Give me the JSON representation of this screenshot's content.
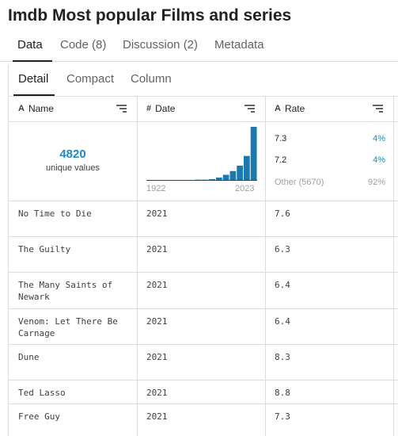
{
  "title": "Imdb Most popular Films and series",
  "tabs": [
    {
      "label": "Data",
      "active": true
    },
    {
      "label": "Code (8)",
      "active": false
    },
    {
      "label": "Discussion (2)",
      "active": false
    },
    {
      "label": "Metadata",
      "active": false
    }
  ],
  "subtabs": [
    {
      "label": "Detail",
      "active": true
    },
    {
      "label": "Compact",
      "active": false
    },
    {
      "label": "Column",
      "active": false
    }
  ],
  "columns": [
    {
      "type_icon": "A",
      "name": "Name"
    },
    {
      "type_icon": "#",
      "name": "Date"
    },
    {
      "type_icon": "A",
      "name": "Rate"
    }
  ],
  "summary": {
    "name": {
      "unique_count": "4820",
      "unique_label": "unique values"
    },
    "date": {
      "min_label": "1922",
      "max_label": "2023",
      "bar_color": "#1a7aaf",
      "histogram": [
        0.01,
        0.01,
        0.01,
        0.01,
        0.01,
        0.01,
        0.01,
        0.02,
        0.02,
        0.03,
        0.06,
        0.11,
        0.18,
        0.28,
        0.46,
        1.0
      ]
    },
    "rate": [
      {
        "label": "7.3",
        "pct": "4%"
      },
      {
        "label": "7.2",
        "pct": "4%"
      },
      {
        "label": "Other (5670)",
        "pct": "92%"
      }
    ]
  },
  "rows": [
    {
      "name": [
        "No Time to Die"
      ],
      "date": "2021",
      "rate": "7.6"
    },
    {
      "name": [
        "The Guilty"
      ],
      "date": "2021",
      "rate": "6.3"
    },
    {
      "name": [
        "The Many Saints of",
        "Newark"
      ],
      "date": "2021",
      "rate": "6.4"
    },
    {
      "name": [
        "Venom: Let There Be",
        "Carnage"
      ],
      "date": "2021",
      "rate": "6.4"
    },
    {
      "name": [
        "Dune"
      ],
      "date": "2021",
      "rate": "8.3"
    },
    {
      "name": [
        "Ted Lasso"
      ],
      "date": "2021",
      "rate": "8.8"
    },
    {
      "name": [
        "Free Guy"
      ],
      "date": "2021",
      "rate": "7.3"
    }
  ]
}
